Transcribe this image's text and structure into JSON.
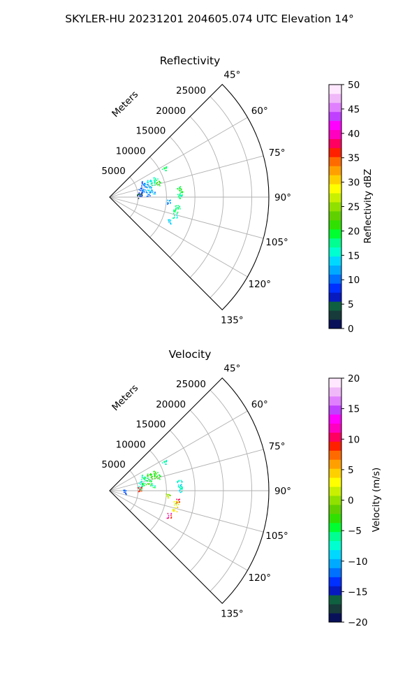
{
  "figure": {
    "suptitle": "SKYLER-HU  20231201  204605.074 UTC Elevation 14°"
  },
  "chart_data": [
    {
      "type": "heatmap",
      "title": "Reflectivity",
      "projection": "polar sector",
      "theta_range_deg": [
        45,
        135
      ],
      "r_max_m": 28000,
      "radial_label": "Meters",
      "r_ticks": [
        5000,
        10000,
        15000,
        20000,
        25000
      ],
      "r_tick_labels": [
        "5000",
        "10000",
        "15000",
        "20000",
        "25000"
      ],
      "theta_ticks": [
        45,
        60,
        75,
        90,
        105,
        120,
        135
      ],
      "theta_tick_labels": [
        "45°",
        "60°",
        "75°",
        "90°",
        "105°",
        "120°",
        "135°"
      ],
      "grid": true,
      "colorbar": {
        "label": "Reflectivity dBZ",
        "range": [
          0,
          50
        ],
        "ticks": [
          0,
          5,
          10,
          15,
          20,
          25,
          30,
          35,
          40,
          45,
          50
        ],
        "tick_labels": [
          "0",
          "5",
          "10",
          "15",
          "20",
          "25",
          "30",
          "35",
          "40",
          "45",
          "50"
        ],
        "colors": [
          "#08105a",
          "#173a3a",
          "#0f6040",
          "#061ac0",
          "#0030ff",
          "#0070ff",
          "#00aaff",
          "#00d8ff",
          "#00ffd0",
          "#00ff90",
          "#00ff30",
          "#30e000",
          "#60d000",
          "#90e000",
          "#c8f000",
          "#ffff00",
          "#ffd000",
          "#ffa000",
          "#ff6a00",
          "#ff2000",
          "#ff0060",
          "#ff00c0",
          "#ff00ff",
          "#c040ff",
          "#e080ff",
          "#f0b8f8",
          "#ffe8ff"
        ]
      },
      "echoes": [
        {
          "theta": 61.5,
          "r": 10800,
          "value": 18
        },
        {
          "theta": 67.0,
          "r": 6200,
          "value": 10
        },
        {
          "theta": 68.5,
          "r": 7400,
          "value": 14
        },
        {
          "theta": 69.0,
          "r": 8600,
          "value": 17
        },
        {
          "theta": 71.5,
          "r": 6800,
          "value": 12
        },
        {
          "theta": 71.0,
          "r": 7900,
          "value": 16
        },
        {
          "theta": 73.5,
          "r": 8900,
          "value": 22
        },
        {
          "theta": 74.5,
          "r": 5600,
          "value": 9
        },
        {
          "theta": 77.5,
          "r": 7100,
          "value": 13
        },
        {
          "theta": 79.0,
          "r": 6100,
          "value": 11
        },
        {
          "theta": 82.0,
          "r": 7600,
          "value": 12
        },
        {
          "theta": 84.5,
          "r": 5500,
          "value": 9
        },
        {
          "theta": 85.0,
          "r": 6700,
          "value": 10
        },
        {
          "theta": 87.0,
          "r": 5200,
          "value": 4
        },
        {
          "theta": 83.0,
          "r": 12300,
          "value": 20
        },
        {
          "theta": 86.5,
          "r": 12400,
          "value": 19
        },
        {
          "theta": 89.0,
          "r": 12300,
          "value": 18
        },
        {
          "theta": 94.5,
          "r": 10300,
          "value": 11
        },
        {
          "theta": 98.5,
          "r": 12000,
          "value": 18
        },
        {
          "theta": 100.5,
          "r": 11800,
          "value": 19
        },
        {
          "theta": 105.5,
          "r": 11900,
          "value": 16
        },
        {
          "theta": 112.5,
          "r": 11300,
          "value": 14
        }
      ]
    },
    {
      "type": "heatmap",
      "title": "Velocity",
      "projection": "polar sector",
      "theta_range_deg": [
        45,
        135
      ],
      "r_max_m": 28000,
      "radial_label": "Meters",
      "r_ticks": [
        5000,
        10000,
        15000,
        20000,
        25000
      ],
      "r_tick_labels": [
        "5000",
        "10000",
        "15000",
        "20000",
        "25000"
      ],
      "theta_ticks": [
        45,
        60,
        75,
        90,
        105,
        120,
        135
      ],
      "theta_tick_labels": [
        "45°",
        "60°",
        "75°",
        "90°",
        "105°",
        "120°",
        "135°"
      ],
      "grid": true,
      "colorbar": {
        "label": "Velocity (m/s)",
        "range": [
          -20,
          20
        ],
        "ticks": [
          -20,
          -15,
          -10,
          -5,
          0,
          5,
          10,
          15,
          20
        ],
        "tick_labels": [
          "−20",
          "−15",
          "−10",
          "−5",
          "0",
          "5",
          "10",
          "15",
          "20"
        ],
        "colors": [
          "#08105a",
          "#173a3a",
          "#0f6040",
          "#061ac0",
          "#0030ff",
          "#0070ff",
          "#00aaff",
          "#00d8ff",
          "#00ffd0",
          "#00ff90",
          "#00ff30",
          "#30e000",
          "#60d000",
          "#90e000",
          "#c8f000",
          "#ffff00",
          "#ffd000",
          "#ffa000",
          "#ff6a00",
          "#ff2000",
          "#ff0060",
          "#ff00c0",
          "#ff00ff",
          "#c040ff",
          "#e080ff",
          "#f0b8f8",
          "#ffe8ff"
        ]
      },
      "echoes": [
        {
          "theta": 61.5,
          "r": 10800,
          "value": -7
        },
        {
          "theta": 67.0,
          "r": 6200,
          "value": -6
        },
        {
          "theta": 68.5,
          "r": 7400,
          "value": -4
        },
        {
          "theta": 69.0,
          "r": 8600,
          "value": -3
        },
        {
          "theta": 71.5,
          "r": 6800,
          "value": -5
        },
        {
          "theta": 71.0,
          "r": 7900,
          "value": -4
        },
        {
          "theta": 73.5,
          "r": 8900,
          "value": -3
        },
        {
          "theta": 74.5,
          "r": 5600,
          "value": -8
        },
        {
          "theta": 77.5,
          "r": 7100,
          "value": -4
        },
        {
          "theta": 79.0,
          "r": 6100,
          "value": -5
        },
        {
          "theta": 82.0,
          "r": 7600,
          "value": -6
        },
        {
          "theta": 84.5,
          "r": 5500,
          "value": -6
        },
        {
          "theta": 87.0,
          "r": 5200,
          "value": 8
        },
        {
          "theta": 83.0,
          "r": 12300,
          "value": -7
        },
        {
          "theta": 86.5,
          "r": 12400,
          "value": -8
        },
        {
          "theta": 89.0,
          "r": 12300,
          "value": -7
        },
        {
          "theta": 94.5,
          "r": 10300,
          "value": 1
        },
        {
          "theta": 98.5,
          "r": 12000,
          "value": 9
        },
        {
          "theta": 100.5,
          "r": 11800,
          "value": 2
        },
        {
          "theta": 105.5,
          "r": 11900,
          "value": 4
        },
        {
          "theta": 112.5,
          "r": 11300,
          "value": 10
        },
        {
          "theta": 95.5,
          "r": 2600,
          "value": -12
        }
      ]
    }
  ]
}
